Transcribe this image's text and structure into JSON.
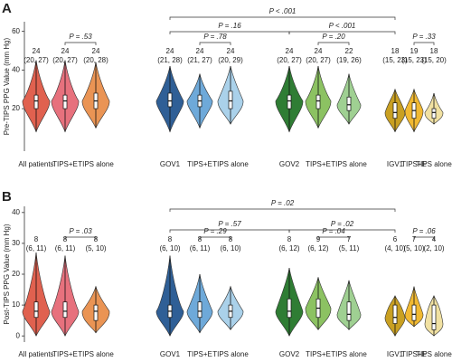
{
  "chart_data": [
    {
      "type": "violin",
      "panel_label": "A",
      "ylabel": "Pre-TIPS PPG Value (mm Hg)",
      "categories": [
        "All patients",
        "TIPS+E",
        "TIPS alone",
        "GOV1",
        "TIPS+E",
        "TIPS alone",
        "GOV2",
        "TIPS+E",
        "TIPS alone",
        "IGV1",
        "TIPS+E",
        "TIPS alone"
      ],
      "ylim": [
        -2,
        65
      ],
      "yticks": [
        20,
        40,
        60
      ],
      "groups": [
        {
          "color": "#e0614f",
          "median": 24,
          "q1": 20,
          "q3": 27,
          "min": 8,
          "max": 45,
          "value_labels": [
            "24",
            "(20, 27)"
          ]
        },
        {
          "color": "#e7717d",
          "median": 24,
          "q1": 20,
          "q3": 27,
          "min": 8,
          "max": 45,
          "value_labels": [
            "24",
            "(20, 27)"
          ]
        },
        {
          "color": "#ea9454",
          "median": 24,
          "q1": 20,
          "q3": 28,
          "min": 10,
          "max": 44,
          "value_labels": [
            "24",
            "(20, 28)"
          ]
        },
        {
          "color": "#2f5f96",
          "median": 24,
          "q1": 21,
          "q3": 28,
          "min": 8,
          "max": 42,
          "value_labels": [
            "24",
            "(21, 28)"
          ]
        },
        {
          "color": "#6ea9d9",
          "median": 24,
          "q1": 21,
          "q3": 27,
          "min": 10,
          "max": 38,
          "value_labels": [
            "24",
            "(21, 27)"
          ]
        },
        {
          "color": "#aad1ea",
          "median": 24,
          "q1": 20,
          "q3": 29,
          "min": 12,
          "max": 42,
          "value_labels": [
            "24",
            "(20, 29)"
          ]
        },
        {
          "color": "#2f7d34",
          "median": 24,
          "q1": 20,
          "q3": 27,
          "min": 8,
          "max": 42,
          "value_labels": [
            "24",
            "(20, 27)"
          ]
        },
        {
          "color": "#8cc262",
          "median": 24,
          "q1": 20,
          "q3": 27,
          "min": 10,
          "max": 42,
          "value_labels": [
            "24",
            "(20, 27)"
          ]
        },
        {
          "color": "#9fd092",
          "median": 22,
          "q1": 19,
          "q3": 26,
          "min": 12,
          "max": 38,
          "value_labels": [
            "22",
            "(19, 26)"
          ]
        },
        {
          "color": "#c9a022",
          "median": 18,
          "q1": 15,
          "q3": 23,
          "min": 8,
          "max": 30,
          "value_labels": [
            "18",
            "(15, 23)"
          ]
        },
        {
          "color": "#f1b932",
          "median": 19,
          "q1": 15,
          "q3": 23,
          "min": 8,
          "max": 30,
          "value_labels": [
            "19",
            "(15, 23)"
          ]
        },
        {
          "color": "#f1e1a2",
          "median": 18,
          "q1": 15,
          "q3": 20,
          "min": 12,
          "max": 28,
          "value_labels": [
            "18",
            "(15, 20)"
          ]
        }
      ],
      "comparisons": [
        {
          "from": 1,
          "to": 2,
          "label": "P = .53"
        },
        {
          "from": 4,
          "to": 5,
          "label": "P = .78"
        },
        {
          "from": 7,
          "to": 8,
          "label": "P = .20"
        },
        {
          "from": 10,
          "to": 11,
          "label": "P = .33"
        },
        {
          "from": 3,
          "to": 6,
          "label": "P = .16"
        },
        {
          "from": 6,
          "to": 9,
          "label": "P < .001"
        },
        {
          "from": 3,
          "to": 9,
          "label": "P < .001"
        }
      ]
    },
    {
      "type": "violin",
      "panel_label": "B",
      "ylabel": "Post-TIPS PPG Value (mm Hg)",
      "categories": [
        "All patients",
        "TIPS+E",
        "TIPS alone",
        "GOV1",
        "TIPS+E",
        "TIPS alone",
        "GOV2",
        "TIPS+E",
        "TIPS alone",
        "IGV1",
        "TIPS+E",
        "TIPS alone"
      ],
      "ylim": [
        -2,
        42
      ],
      "yticks": [
        0,
        10,
        20,
        30,
        40
      ],
      "groups": [
        {
          "color": "#e0614f",
          "median": 8,
          "q1": 6,
          "q3": 11,
          "min": 0,
          "max": 27,
          "value_labels": [
            "8",
            "(6, 11)"
          ]
        },
        {
          "color": "#e7717d",
          "median": 8,
          "q1": 6,
          "q3": 11,
          "min": 0,
          "max": 26,
          "value_labels": [
            "8",
            "(6, 11)"
          ]
        },
        {
          "color": "#ea9454",
          "median": 8,
          "q1": 5,
          "q3": 10,
          "min": 1,
          "max": 16,
          "value_labels": [
            "8",
            "(5, 10)"
          ]
        },
        {
          "color": "#2f5f96",
          "median": 8,
          "q1": 6,
          "q3": 10,
          "min": 0,
          "max": 26,
          "value_labels": [
            "8",
            "(6, 10)"
          ]
        },
        {
          "color": "#6ea9d9",
          "median": 8,
          "q1": 6,
          "q3": 11,
          "min": 1,
          "max": 20,
          "value_labels": [
            "8",
            "(6, 11)"
          ]
        },
        {
          "color": "#aad1ea",
          "median": 8,
          "q1": 6,
          "q3": 10,
          "min": 2,
          "max": 16,
          "value_labels": [
            "8",
            "(6, 10)"
          ]
        },
        {
          "color": "#2f7d34",
          "median": 8,
          "q1": 6,
          "q3": 12,
          "min": 0,
          "max": 22,
          "value_labels": [
            "8",
            "(6, 12)"
          ]
        },
        {
          "color": "#8cc262",
          "median": 9,
          "q1": 6,
          "q3": 12,
          "min": 2,
          "max": 19,
          "value_labels": [
            "9",
            "(6, 12)"
          ]
        },
        {
          "color": "#9fd092",
          "median": 7,
          "q1": 5,
          "q3": 11,
          "min": 2,
          "max": 18,
          "value_labels": [
            "7",
            "(5, 11)"
          ]
        },
        {
          "color": "#c9a022",
          "median": 6,
          "q1": 4,
          "q3": 10,
          "min": 0,
          "max": 13,
          "value_labels": [
            "6",
            "(4, 10)"
          ]
        },
        {
          "color": "#f1b932",
          "median": 7,
          "q1": 5,
          "q3": 10,
          "min": 3,
          "max": 16,
          "value_labels": [
            "7",
            "(5, 10)"
          ]
        },
        {
          "color": "#f1e1a2",
          "median": 4,
          "q1": 2,
          "q3": 10,
          "min": 0,
          "max": 13,
          "value_labels": [
            "4",
            "(2, 10)"
          ]
        }
      ],
      "comparisons": [
        {
          "from": 1,
          "to": 2,
          "label": "P = .03"
        },
        {
          "from": 4,
          "to": 5,
          "label": "P = .29"
        },
        {
          "from": 7,
          "to": 8,
          "label": "P = .04"
        },
        {
          "from": 10,
          "to": 11,
          "label": "P = .06"
        },
        {
          "from": 3,
          "to": 6,
          "label": "P = .57"
        },
        {
          "from": 6,
          "to": 9,
          "label": "P = .02"
        },
        {
          "from": 3,
          "to": 9,
          "label": "P = .02"
        }
      ]
    }
  ]
}
